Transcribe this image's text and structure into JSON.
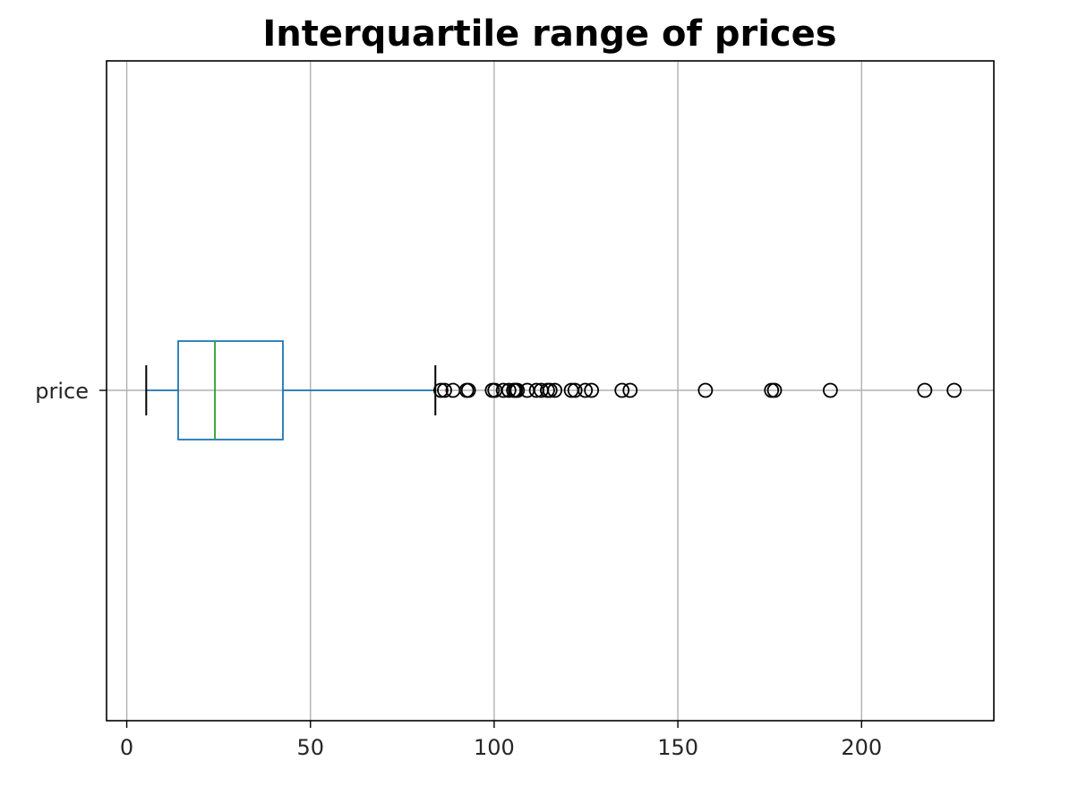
{
  "chart_data": {
    "type": "box",
    "orientation": "horizontal",
    "title": "Interquartile range of prices",
    "xlabel": "",
    "ylabel": "",
    "categories": [
      "price"
    ],
    "xlim": [
      -5.5,
      236
    ],
    "xticks": [
      0,
      50,
      100,
      150,
      200
    ],
    "grid": true,
    "box": {
      "whisker_low": 5.3,
      "q1": 14.0,
      "median": 24.0,
      "q3": 42.5,
      "whisker_high": 84.0
    },
    "outliers": [
      85.5,
      86.5,
      88.8,
      92.5,
      93.0,
      99.5,
      100.2,
      102.5,
      104.0,
      105.3,
      105.8,
      106.3,
      109.0,
      111.5,
      112.8,
      114.5,
      115.2,
      116.5,
      121.0,
      122.0,
      124.8,
      126.5,
      134.8,
      137.0,
      157.5,
      175.5,
      176.3,
      191.5,
      217.2,
      225.2
    ],
    "colors": {
      "box": "#1f77b4",
      "median": "#2ca02c",
      "whisker": "#1f77b4",
      "cap": "#000000",
      "grid": "#b0b0b0",
      "outlier_edge": "#000000"
    }
  }
}
